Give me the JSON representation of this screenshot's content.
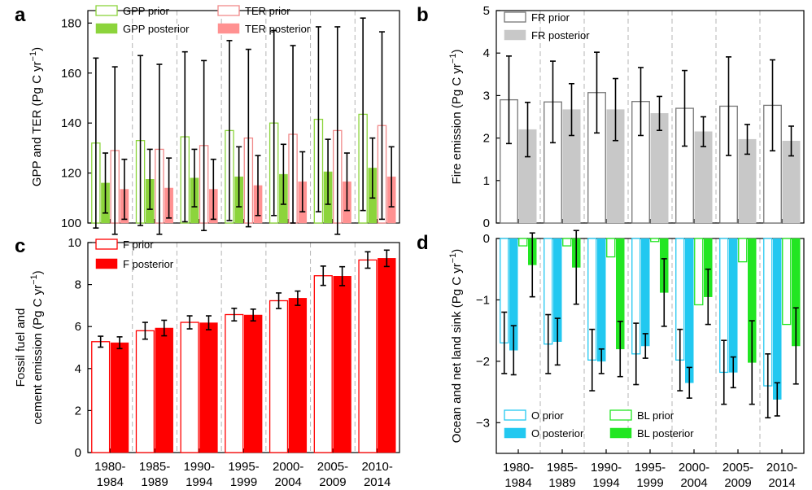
{
  "panels": [
    {
      "letter": "a",
      "ylabel_main": "GPP and TER (Pg C yr",
      "ylabel_sup": "−1",
      "ylabel_end": ")",
      "ylim": [
        100,
        185
      ],
      "yticks": [
        100,
        120,
        140,
        160,
        180
      ],
      "ytick_labels": [
        "100",
        "120",
        "140",
        "160",
        "180"
      ],
      "show_xlabels": false,
      "ylabel_lines": 1
    },
    {
      "letter": "b",
      "ylabel_main": "Fire emission (Pg C yr",
      "ylabel_sup": "−1",
      "ylabel_end": ")",
      "ylim": [
        0,
        5
      ],
      "yticks": [
        0,
        1,
        2,
        3,
        4,
        5
      ],
      "ytick_labels": [
        "0",
        "1",
        "2",
        "3",
        "4",
        "5"
      ],
      "show_xlabels": false,
      "ylabel_lines": 1
    },
    {
      "letter": "c",
      "ylabel_line1": "Fossil fuel and",
      "ylabel_main": "cement emission (Pg C yr",
      "ylabel_sup": "−1",
      "ylabel_end": ")",
      "ylim": [
        0,
        10
      ],
      "yticks": [
        0,
        2,
        4,
        6,
        8,
        10
      ],
      "ytick_labels": [
        "0",
        "2",
        "4",
        "6",
        "8",
        "10"
      ],
      "show_xlabels": true,
      "ylabel_lines": 2
    },
    {
      "letter": "d",
      "ylabel_main": "Ocean and net land sink (Pg C yr",
      "ylabel_sup": "−1",
      "ylabel_end": ")",
      "ylim": [
        -3.5,
        0
      ],
      "yticks": [
        0,
        -1,
        -2,
        -3
      ],
      "ytick_labels": [
        "0",
        "−1",
        "−2",
        "−3"
      ],
      "show_xlabels": true,
      "ylabel_lines": 1
    }
  ],
  "x_tick_labels": [
    [
      "1980-",
      "1984"
    ],
    [
      "1985-",
      "1989"
    ],
    [
      "1990-",
      "1994"
    ],
    [
      "1995-",
      "1999"
    ],
    [
      "2000-",
      "2004"
    ],
    [
      "2005-",
      "2009"
    ],
    [
      "2010-",
      "2014"
    ]
  ],
  "chart_data": [
    {
      "type": "bar",
      "panel": "a",
      "categories": [
        "1980-1984",
        "1985-1989",
        "1990-1994",
        "1995-1999",
        "2000-2004",
        "2005-2009",
        "2010-2014"
      ],
      "ylabel": "GPP and TER (Pg C yr−1)",
      "ylim": [
        100,
        185
      ],
      "legend": "top-left",
      "series": [
        {
          "name": "GPP prior",
          "style": "outline",
          "color": "#8cd43c",
          "values": [
            132,
            133,
            134.5,
            137,
            140,
            141.5,
            143.5
          ],
          "err": [
            34,
            34,
            34,
            36,
            37,
            37,
            38.5
          ]
        },
        {
          "name": "GPP posterior",
          "style": "fill",
          "color": "#8cd43c",
          "values": [
            116,
            117.5,
            118,
            118.5,
            119.5,
            120.5,
            122
          ],
          "err": [
            12,
            12,
            11.5,
            12,
            12,
            13,
            12
          ]
        },
        {
          "name": "TER prior",
          "style": "outline",
          "color": "#f08a8a",
          "values": [
            129,
            129.5,
            131,
            134,
            135.5,
            137,
            139
          ],
          "err": [
            33.5,
            34,
            34,
            35.5,
            35.5,
            41.5,
            37.5
          ]
        },
        {
          "name": "TER posterior",
          "style": "fill",
          "color": "#ff9191",
          "values": [
            113.5,
            114,
            113.5,
            115,
            116.5,
            116.5,
            118.5
          ],
          "err": [
            12,
            12,
            12,
            12,
            12,
            11.5,
            12
          ]
        }
      ]
    },
    {
      "type": "bar",
      "panel": "b",
      "categories": [
        "1980-1984",
        "1985-1989",
        "1990-1994",
        "1995-1999",
        "2000-2004",
        "2005-2009",
        "2010-2014"
      ],
      "ylabel": "Fire emission (Pg C yr−1)",
      "ylim": [
        0,
        5
      ],
      "legend": "top-left",
      "series": [
        {
          "name": "FR prior",
          "style": "outline",
          "color": "#777777",
          "values": [
            2.9,
            2.85,
            3.07,
            2.86,
            2.7,
            2.75,
            2.77
          ],
          "err": [
            1.03,
            0.96,
            0.95,
            0.8,
            0.89,
            1.16,
            1.07
          ]
        },
        {
          "name": "FR posterior",
          "style": "fill",
          "color": "#c8c8c8",
          "values": [
            2.2,
            2.67,
            2.67,
            2.58,
            2.15,
            1.97,
            1.93
          ],
          "err": [
            0.64,
            0.61,
            0.73,
            0.4,
            0.35,
            0.35,
            0.35
          ]
        }
      ]
    },
    {
      "type": "bar",
      "panel": "c",
      "categories": [
        "1980-1984",
        "1985-1989",
        "1990-1994",
        "1995-1999",
        "2000-2004",
        "2005-2009",
        "2010-2014"
      ],
      "ylabel": "Fossil fuel and cement emission (Pg C yr−1)",
      "ylim": [
        0,
        10
      ],
      "legend": "top-left",
      "series": [
        {
          "name": "F prior",
          "style": "outline",
          "color": "#ff0000",
          "values": [
            5.28,
            5.8,
            6.2,
            6.57,
            7.23,
            8.42,
            9.17
          ],
          "err": [
            0.26,
            0.4,
            0.31,
            0.3,
            0.37,
            0.46,
            0.39
          ]
        },
        {
          "name": "F posterior",
          "style": "fill",
          "color": "#ff0000",
          "values": [
            5.23,
            5.93,
            6.18,
            6.55,
            7.35,
            8.4,
            9.25
          ],
          "err": [
            0.28,
            0.37,
            0.33,
            0.28,
            0.34,
            0.45,
            0.39
          ]
        }
      ]
    },
    {
      "type": "bar",
      "panel": "d",
      "categories": [
        "1980-1984",
        "1985-1989",
        "1990-1994",
        "1995-1999",
        "2000-2004",
        "2005-2009",
        "2010-2014"
      ],
      "ylabel": "Ocean and net land sink (Pg C yr−1)",
      "ylim": [
        -3.5,
        0
      ],
      "legend": "bottom",
      "series": [
        {
          "name": "O prior",
          "style": "outline",
          "color": "#22c8f0",
          "values": [
            -1.7,
            -1.72,
            -1.98,
            -1.88,
            -1.98,
            -2.18,
            -2.4
          ],
          "err": [
            0.5,
            0.48,
            0.5,
            0.5,
            0.5,
            0.52,
            0.52
          ]
        },
        {
          "name": "O posterior",
          "style": "fill",
          "color": "#22c8f0",
          "values": [
            -1.82,
            -1.68,
            -2.0,
            -1.75,
            -2.35,
            -2.18,
            -2.62
          ],
          "err": [
            0.4,
            0.38,
            0.2,
            0.2,
            0.25,
            0.25,
            0.27
          ]
        },
        {
          "name": "BL prior",
          "style": "outline",
          "color": "#22e622",
          "values": [
            -0.12,
            -0.12,
            -0.3,
            -0.05,
            -1.08,
            -0.38,
            -1.4
          ],
          "err": [
            0,
            0,
            0,
            0,
            0,
            0,
            0
          ]
        },
        {
          "name": "BL posterior",
          "style": "fill",
          "color": "#22e622",
          "values": [
            -0.43,
            -0.47,
            -1.8,
            -0.88,
            -0.95,
            -2.02,
            -1.75
          ],
          "err": [
            0.52,
            0.6,
            0.45,
            0.55,
            0.45,
            0.68,
            0.62
          ]
        }
      ]
    }
  ]
}
